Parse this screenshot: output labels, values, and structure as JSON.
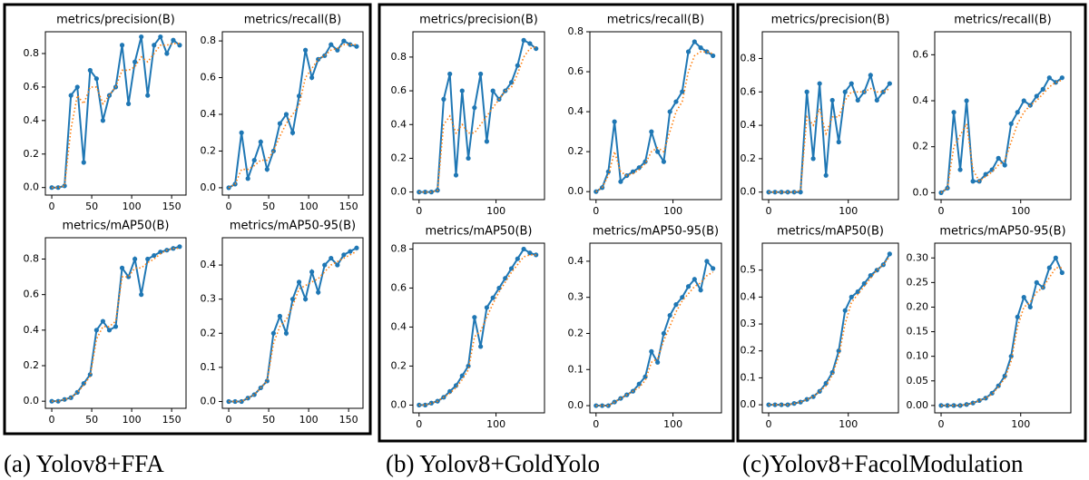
{
  "captions": [
    "(a) Yolov8+FFA",
    "(b) Yolov8+GoldYolo",
    "(c)Yolov8+FacolModulation"
  ],
  "chart_data": [
    {
      "type": "line",
      "title": "metrics/precision(B)",
      "x": [
        0,
        8,
        16,
        24,
        32,
        40,
        48,
        56,
        64,
        72,
        80,
        88,
        96,
        104,
        112,
        120,
        128,
        136,
        144,
        152,
        160
      ],
      "series": [
        {
          "color": "#1f77b4",
          "marker": "o",
          "linestyle": "solid",
          "values": [
            0,
            0,
            0.01,
            0.55,
            0.6,
            0.15,
            0.7,
            0.65,
            0.4,
            0.55,
            0.6,
            0.85,
            0.5,
            0.75,
            0.9,
            0.55,
            0.85,
            0.9,
            0.8,
            0.88,
            0.85
          ]
        },
        {
          "color": "#ff7f0e",
          "linestyle": "dotted",
          "values": [
            0,
            0,
            0.01,
            0.35,
            0.55,
            0.5,
            0.6,
            0.6,
            0.5,
            0.55,
            0.6,
            0.7,
            0.7,
            0.72,
            0.78,
            0.75,
            0.8,
            0.85,
            0.85,
            0.86,
            0.86
          ]
        }
      ],
      "xlim": [
        -8,
        168
      ],
      "xticks": [
        0,
        50,
        100,
        150
      ],
      "ylim": [
        -0.045,
        0.93
      ],
      "yticks": [
        {
          "value": 0,
          "label": "0.0"
        },
        0.2,
        0.4,
        0.6,
        0.8
      ]
    },
    {
      "type": "line",
      "title": "metrics/recall(B)",
      "x": [
        0,
        8,
        16,
        24,
        32,
        40,
        48,
        56,
        64,
        72,
        80,
        88,
        96,
        104,
        112,
        120,
        128,
        136,
        144,
        152,
        160
      ],
      "series": [
        {
          "color": "#1f77b4",
          "marker": "o",
          "linestyle": "solid",
          "values": [
            0,
            0.02,
            0.3,
            0.05,
            0.15,
            0.25,
            0.1,
            0.2,
            0.35,
            0.4,
            0.3,
            0.5,
            0.75,
            0.6,
            0.7,
            0.72,
            0.78,
            0.75,
            0.8,
            0.78,
            0.77
          ]
        },
        {
          "color": "#ff7f0e",
          "linestyle": "dotted",
          "values": [
            0,
            0.02,
            0.1,
            0.1,
            0.12,
            0.15,
            0.15,
            0.2,
            0.28,
            0.35,
            0.4,
            0.45,
            0.6,
            0.65,
            0.7,
            0.72,
            0.75,
            0.76,
            0.78,
            0.78,
            0.78
          ]
        }
      ],
      "xlim": [
        -8,
        168
      ],
      "xticks": [
        0,
        50,
        100,
        150
      ],
      "ylim": [
        -0.04,
        0.85
      ],
      "yticks": [
        {
          "value": 0,
          "label": "0.0"
        },
        0.2,
        0.4,
        0.6,
        0.8
      ]
    },
    {
      "type": "line",
      "title": "metrics/mAP50(B)",
      "x": [
        0,
        8,
        16,
        24,
        32,
        40,
        48,
        56,
        64,
        72,
        80,
        88,
        96,
        104,
        112,
        120,
        128,
        136,
        144,
        152,
        160
      ],
      "series": [
        {
          "color": "#1f77b4",
          "marker": "o",
          "linestyle": "solid",
          "values": [
            0,
            0,
            0.01,
            0.02,
            0.05,
            0.1,
            0.15,
            0.4,
            0.45,
            0.4,
            0.42,
            0.75,
            0.7,
            0.8,
            0.6,
            0.8,
            0.82,
            0.84,
            0.85,
            0.86,
            0.87
          ]
        },
        {
          "color": "#ff7f0e",
          "linestyle": "dotted",
          "values": [
            0,
            0,
            0.01,
            0.02,
            0.05,
            0.09,
            0.14,
            0.35,
            0.42,
            0.42,
            0.45,
            0.7,
            0.7,
            0.75,
            0.75,
            0.78,
            0.8,
            0.83,
            0.85,
            0.86,
            0.86
          ]
        }
      ],
      "xlim": [
        -8,
        168
      ],
      "xticks": [
        0,
        50,
        100,
        150
      ],
      "ylim": [
        -0.04,
        0.92
      ],
      "yticks": [
        {
          "value": 0,
          "label": "0.0"
        },
        0.2,
        0.4,
        0.6,
        0.8
      ]
    },
    {
      "type": "line",
      "title": "metrics/mAP50-95(B)",
      "x": [
        0,
        8,
        16,
        24,
        32,
        40,
        48,
        56,
        64,
        72,
        80,
        88,
        96,
        104,
        112,
        120,
        128,
        136,
        144,
        152,
        160
      ],
      "series": [
        {
          "color": "#1f77b4",
          "marker": "o",
          "linestyle": "solid",
          "values": [
            0,
            0,
            0,
            0.01,
            0.02,
            0.04,
            0.06,
            0.2,
            0.25,
            0.2,
            0.3,
            0.35,
            0.3,
            0.38,
            0.32,
            0.4,
            0.42,
            0.4,
            0.43,
            0.44,
            0.45
          ]
        },
        {
          "color": "#ff7f0e",
          "linestyle": "dotted",
          "values": [
            0,
            0,
            0,
            0.01,
            0.02,
            0.04,
            0.06,
            0.17,
            0.22,
            0.24,
            0.28,
            0.33,
            0.34,
            0.35,
            0.36,
            0.38,
            0.4,
            0.41,
            0.42,
            0.43,
            0.44
          ]
        }
      ],
      "xlim": [
        -8,
        168
      ],
      "xticks": [
        0,
        50,
        100,
        150
      ],
      "ylim": [
        -0.02,
        0.48
      ],
      "yticks": [
        {
          "value": 0,
          "label": "0.0"
        },
        0.1,
        0.2,
        0.3,
        0.4
      ]
    },
    {
      "type": "line",
      "title": "metrics/precision(B)",
      "x": [
        0,
        8,
        16,
        24,
        32,
        40,
        48,
        56,
        64,
        72,
        80,
        88,
        96,
        104,
        112,
        120,
        128,
        136,
        144,
        152
      ],
      "series": [
        {
          "color": "#1f77b4",
          "marker": "o",
          "linestyle": "solid",
          "values": [
            0,
            0,
            0,
            0.01,
            0.55,
            0.7,
            0.1,
            0.6,
            0.2,
            0.5,
            0.7,
            0.3,
            0.6,
            0.55,
            0.6,
            0.65,
            0.75,
            0.9,
            0.88,
            0.85
          ]
        },
        {
          "color": "#ff7f0e",
          "linestyle": "dotted",
          "values": [
            0,
            0,
            0,
            0.01,
            0.4,
            0.45,
            0.35,
            0.4,
            0.35,
            0.35,
            0.4,
            0.45,
            0.5,
            0.55,
            0.6,
            0.62,
            0.7,
            0.8,
            0.85,
            0.86
          ]
        }
      ],
      "xlim": [
        -8,
        163
      ],
      "xticks": [
        0,
        100
      ],
      "ylim": [
        -0.045,
        0.95
      ],
      "yticks": [
        {
          "value": 0,
          "label": "0.0"
        },
        0.2,
        0.4,
        0.6,
        0.8
      ]
    },
    {
      "type": "line",
      "title": "metrics/recall(B)",
      "x": [
        0,
        8,
        16,
        24,
        32,
        40,
        48,
        56,
        64,
        72,
        80,
        88,
        96,
        104,
        112,
        120,
        128,
        136,
        144,
        152
      ],
      "series": [
        {
          "color": "#1f77b4",
          "marker": "o",
          "linestyle": "solid",
          "values": [
            0,
            0.02,
            0.1,
            0.35,
            0.05,
            0.08,
            0.1,
            0.12,
            0.15,
            0.3,
            0.2,
            0.15,
            0.4,
            0.45,
            0.5,
            0.7,
            0.75,
            0.72,
            0.7,
            0.68
          ]
        },
        {
          "color": "#ff7f0e",
          "linestyle": "dotted",
          "values": [
            0,
            0.02,
            0.08,
            0.2,
            0.1,
            0.08,
            0.09,
            0.11,
            0.14,
            0.2,
            0.22,
            0.2,
            0.3,
            0.4,
            0.45,
            0.6,
            0.68,
            0.7,
            0.7,
            0.69
          ]
        }
      ],
      "xlim": [
        -8,
        163
      ],
      "xticks": [
        0,
        100
      ],
      "ylim": [
        -0.04,
        0.8
      ],
      "yticks": [
        {
          "value": 0,
          "label": "0.0"
        },
        0.2,
        0.4,
        0.6,
        0.8
      ]
    },
    {
      "type": "line",
      "title": "metrics/mAP50(B)",
      "x": [
        0,
        8,
        16,
        24,
        32,
        40,
        48,
        56,
        64,
        72,
        80,
        88,
        96,
        104,
        112,
        120,
        128,
        136,
        144,
        152
      ],
      "series": [
        {
          "color": "#1f77b4",
          "marker": "o",
          "linestyle": "solid",
          "values": [
            0,
            0,
            0.01,
            0.02,
            0.04,
            0.07,
            0.1,
            0.15,
            0.2,
            0.45,
            0.3,
            0.5,
            0.55,
            0.6,
            0.65,
            0.7,
            0.75,
            0.8,
            0.78,
            0.77
          ]
        },
        {
          "color": "#ff7f0e",
          "linestyle": "dotted",
          "values": [
            0,
            0,
            0.01,
            0.02,
            0.04,
            0.06,
            0.09,
            0.13,
            0.18,
            0.35,
            0.38,
            0.45,
            0.52,
            0.58,
            0.63,
            0.68,
            0.72,
            0.76,
            0.77,
            0.77
          ]
        }
      ],
      "xlim": [
        -8,
        163
      ],
      "xticks": [
        0,
        100
      ],
      "ylim": [
        -0.04,
        0.83
      ],
      "yticks": [
        {
          "value": 0,
          "label": "0.0"
        },
        0.2,
        0.4,
        0.6,
        0.8
      ]
    },
    {
      "type": "line",
      "title": "metrics/mAP50-95(B)",
      "x": [
        0,
        8,
        16,
        24,
        32,
        40,
        48,
        56,
        64,
        72,
        80,
        88,
        96,
        104,
        112,
        120,
        128,
        136,
        144,
        152
      ],
      "series": [
        {
          "color": "#1f77b4",
          "marker": "o",
          "linestyle": "solid",
          "values": [
            0,
            0,
            0,
            0.01,
            0.02,
            0.03,
            0.04,
            0.06,
            0.08,
            0.15,
            0.12,
            0.2,
            0.25,
            0.28,
            0.3,
            0.33,
            0.35,
            0.32,
            0.4,
            0.38
          ]
        },
        {
          "color": "#ff7f0e",
          "linestyle": "dotted",
          "values": [
            0,
            0,
            0,
            0.01,
            0.02,
            0.03,
            0.04,
            0.05,
            0.07,
            0.12,
            0.13,
            0.18,
            0.22,
            0.26,
            0.29,
            0.31,
            0.33,
            0.34,
            0.36,
            0.37
          ]
        }
      ],
      "xlim": [
        -8,
        163
      ],
      "xticks": [
        0,
        100
      ],
      "ylim": [
        -0.02,
        0.45
      ],
      "yticks": [
        {
          "value": 0,
          "label": "0.0"
        },
        0.1,
        0.2,
        0.3,
        0.4
      ]
    },
    {
      "type": "line",
      "title": "metrics/precision(B)",
      "x": [
        0,
        8,
        16,
        24,
        32,
        40,
        48,
        56,
        64,
        72,
        80,
        88,
        96,
        104,
        112,
        120,
        128,
        136,
        144,
        152
      ],
      "series": [
        {
          "color": "#1f77b4",
          "marker": "o",
          "linestyle": "solid",
          "values": [
            0,
            0,
            0,
            0,
            0,
            0,
            0.6,
            0.2,
            0.65,
            0.1,
            0.55,
            0.3,
            0.6,
            0.65,
            0.55,
            0.6,
            0.7,
            0.55,
            0.6,
            0.65
          ]
        },
        {
          "color": "#ff7f0e",
          "linestyle": "dotted",
          "values": [
            0,
            0,
            0,
            0,
            0,
            0.01,
            0.45,
            0.4,
            0.5,
            0.35,
            0.45,
            0.45,
            0.55,
            0.6,
            0.6,
            0.6,
            0.62,
            0.6,
            0.6,
            0.62
          ]
        }
      ],
      "xlim": [
        -8,
        163
      ],
      "xticks": [
        0,
        100
      ],
      "ylim": [
        -0.045,
        0.96
      ],
      "yticks": [
        {
          "value": 0,
          "label": "0.0"
        },
        0.2,
        0.4,
        0.6,
        0.8
      ]
    },
    {
      "type": "line",
      "title": "metrics/recall(B)",
      "x": [
        0,
        8,
        16,
        24,
        32,
        40,
        48,
        56,
        64,
        72,
        80,
        88,
        96,
        104,
        112,
        120,
        128,
        136,
        144,
        152
      ],
      "series": [
        {
          "color": "#1f77b4",
          "marker": "o",
          "linestyle": "solid",
          "values": [
            0,
            0.02,
            0.35,
            0.1,
            0.4,
            0.05,
            0.05,
            0.08,
            0.1,
            0.15,
            0.12,
            0.3,
            0.35,
            0.4,
            0.38,
            0.42,
            0.45,
            0.5,
            0.48,
            0.5
          ]
        },
        {
          "color": "#ff7f0e",
          "linestyle": "dotted",
          "values": [
            0,
            0.02,
            0.2,
            0.25,
            0.3,
            0.1,
            0.05,
            0.07,
            0.09,
            0.12,
            0.14,
            0.22,
            0.3,
            0.35,
            0.38,
            0.4,
            0.43,
            0.46,
            0.48,
            0.49
          ]
        }
      ],
      "xlim": [
        -8,
        163
      ],
      "xticks": [
        0,
        100
      ],
      "ylim": [
        -0.03,
        0.7
      ],
      "yticks": [
        {
          "value": 0,
          "label": "0.0"
        },
        0.2,
        0.4,
        0.6
      ]
    },
    {
      "type": "line",
      "title": "metrics/mAP50(B)",
      "x": [
        0,
        8,
        16,
        24,
        32,
        40,
        48,
        56,
        64,
        72,
        80,
        88,
        96,
        104,
        112,
        120,
        128,
        136,
        144,
        152
      ],
      "series": [
        {
          "color": "#1f77b4",
          "marker": "o",
          "linestyle": "solid",
          "values": [
            0,
            0,
            0,
            0,
            0.005,
            0.01,
            0.02,
            0.03,
            0.05,
            0.08,
            0.12,
            0.2,
            0.35,
            0.4,
            0.42,
            0.45,
            0.48,
            0.5,
            0.52,
            0.56
          ]
        },
        {
          "color": "#ff7f0e",
          "linestyle": "dotted",
          "values": [
            0,
            0,
            0,
            0,
            0.005,
            0.01,
            0.02,
            0.03,
            0.05,
            0.07,
            0.11,
            0.18,
            0.3,
            0.38,
            0.41,
            0.44,
            0.47,
            0.5,
            0.52,
            0.55
          ]
        }
      ],
      "xlim": [
        -8,
        163
      ],
      "xticks": [
        0,
        100
      ],
      "ylim": [
        -0.03,
        0.6
      ],
      "yticks": [
        {
          "value": 0,
          "label": "0.0"
        },
        0.1,
        0.2,
        0.3,
        0.4,
        0.5
      ]
    },
    {
      "type": "line",
      "title": "metrics/mAP50-95(B)",
      "x": [
        0,
        8,
        16,
        24,
        32,
        40,
        48,
        56,
        64,
        72,
        80,
        88,
        96,
        104,
        112,
        120,
        128,
        136,
        144,
        152
      ],
      "series": [
        {
          "color": "#1f77b4",
          "marker": "o",
          "linestyle": "solid",
          "values": [
            0,
            0,
            0,
            0,
            0.002,
            0.005,
            0.01,
            0.015,
            0.025,
            0.04,
            0.06,
            0.1,
            0.18,
            0.22,
            0.2,
            0.25,
            0.24,
            0.28,
            0.3,
            0.27
          ]
        },
        {
          "color": "#ff7f0e",
          "linestyle": "dotted",
          "values": [
            0,
            0,
            0,
            0,
            0.002,
            0.005,
            0.01,
            0.015,
            0.023,
            0.038,
            0.055,
            0.09,
            0.16,
            0.2,
            0.21,
            0.23,
            0.24,
            0.26,
            0.28,
            0.28
          ]
        }
      ],
      "xlim": [
        -8,
        163
      ],
      "xticks": [
        0,
        100
      ],
      "ylim": [
        -0.015,
        0.33
      ],
      "yticks": [
        {
          "value": 0,
          "label": "0.00"
        },
        0.05,
        {
          "value": 0.1,
          "label": "0.10"
        },
        0.15,
        {
          "value": 0.2,
          "label": "0.20"
        },
        0.25,
        {
          "value": 0.3,
          "label": "0.30"
        }
      ]
    }
  ]
}
